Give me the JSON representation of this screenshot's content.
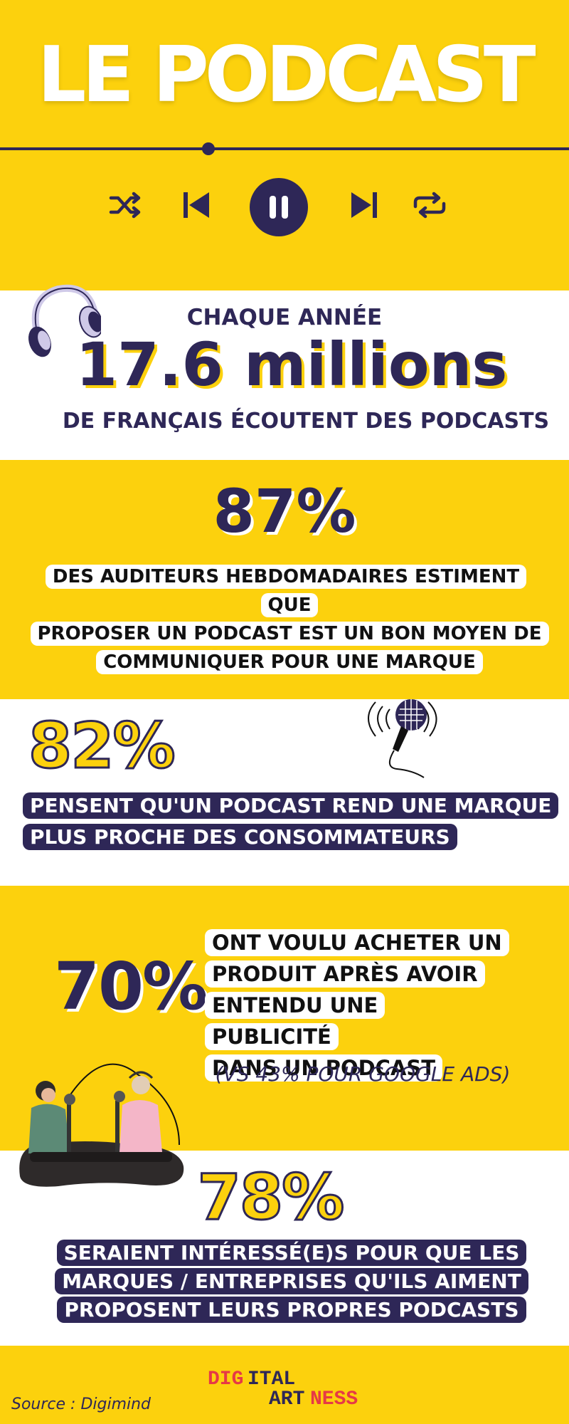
{
  "header": {
    "title": "LE PODCAST",
    "player_icons": [
      "shuffle-icon",
      "previous-icon",
      "pause-icon",
      "next-icon",
      "repeat-icon"
    ]
  },
  "stat_listeners": {
    "prefix": "CHAQUE ANNÉE",
    "value": "17.6 millions",
    "suffix": "DE FRANÇAIS ÉCOUTENT DES PODCASTS"
  },
  "stat_87": {
    "value": "87%",
    "lines": [
      "DES AUDITEURS HEBDOMADAIRES ESTIMENT QUE",
      "PROPOSER UN PODCAST EST UN BON MOYEN DE",
      "COMMUNIQUER POUR UNE MARQUE"
    ]
  },
  "stat_82": {
    "value": "82%",
    "lines": [
      "PENSENT QU'UN PODCAST REND UNE MARQUE",
      "PLUS PROCHE DES CONSOMMATEURS"
    ]
  },
  "stat_70": {
    "value": "70%",
    "lines": [
      "ONT VOULU ACHETER UN",
      "PRODUIT APRÈS AVOIR",
      "ENTENDU UNE PUBLICITÉ",
      "DANS UN PODCAST"
    ],
    "note": "(VS 43% POUR GOOGLE ADS)"
  },
  "stat_78": {
    "value": "78%",
    "lines": [
      "SERAIENT INTÉRESSÉ(E)S POUR QUE LES",
      "MARQUES / ENTREPRISES QU'ILS AIMENT",
      "PROPOSENT LEURS PROPRES PODCASTS"
    ]
  },
  "footer": {
    "source": "Source : Digimind",
    "logo_text": "DIGITAL ARTNESS"
  },
  "colors": {
    "yellow": "#fcd10d",
    "navy": "#2e2757",
    "white": "#ffffff"
  }
}
